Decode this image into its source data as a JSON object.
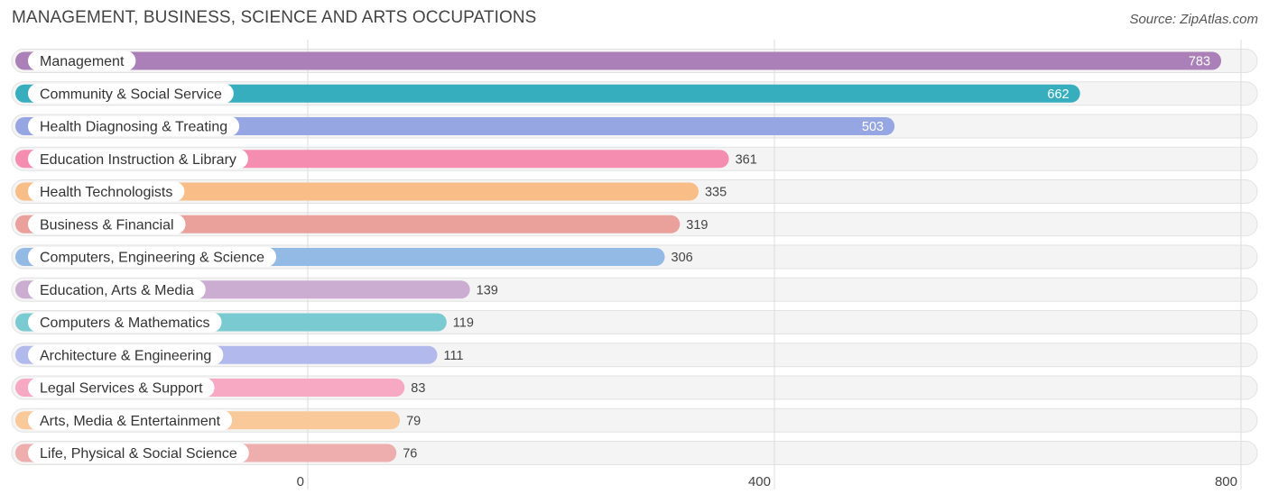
{
  "title": "MANAGEMENT, BUSINESS, SCIENCE AND ARTS OCCUPATIONS",
  "source": "Source: ZipAtlas.com",
  "chart_data": {
    "type": "bar",
    "orientation": "horizontal",
    "title": "MANAGEMENT, BUSINESS, SCIENCE AND ARTS OCCUPATIONS",
    "xlabel": "",
    "ylabel": "",
    "xlim": [
      0,
      800
    ],
    "xticks": [
      0,
      400,
      800
    ],
    "grid": true,
    "categories": [
      "Management",
      "Community & Social Service",
      "Health Diagnosing & Treating",
      "Education Instruction & Library",
      "Health Technologists",
      "Business & Financial",
      "Computers, Engineering & Science",
      "Education, Arts & Media",
      "Computers & Mathematics",
      "Architecture & Engineering",
      "Legal Services & Support",
      "Arts, Media & Entertainment",
      "Life, Physical & Social Science"
    ],
    "values": [
      783,
      662,
      503,
      361,
      335,
      319,
      306,
      139,
      119,
      111,
      83,
      79,
      76
    ],
    "colors": [
      "#ab7fb7",
      "#36aebe",
      "#96a6e2",
      "#f48db0",
      "#f9bd87",
      "#eaa09b",
      "#93bae5",
      "#ccadd2",
      "#7acbd1",
      "#b2b9ec",
      "#f7a9c4",
      "#f9c99a",
      "#efaeae"
    ]
  }
}
